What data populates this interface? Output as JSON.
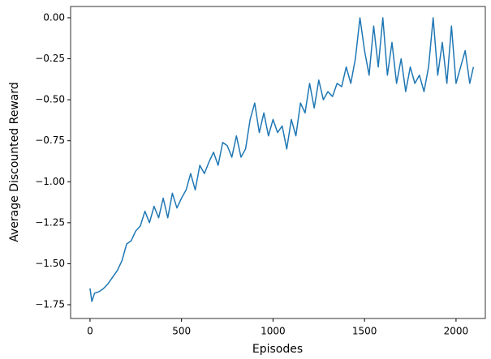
{
  "chart_data": {
    "type": "line",
    "x_label": "Episodes",
    "y_label": "Average Discounted Reward",
    "x": [
      0,
      10,
      25,
      50,
      75,
      100,
      125,
      150,
      175,
      200,
      225,
      250,
      275,
      300,
      325,
      350,
      375,
      400,
      425,
      450,
      475,
      500,
      525,
      550,
      575,
      600,
      625,
      650,
      675,
      700,
      725,
      750,
      775,
      800,
      825,
      850,
      875,
      900,
      925,
      950,
      975,
      1000,
      1025,
      1050,
      1075,
      1100,
      1125,
      1150,
      1175,
      1200,
      1225,
      1250,
      1275,
      1300,
      1325,
      1350,
      1375,
      1400,
      1425,
      1450,
      1475,
      1500,
      1525,
      1550,
      1575,
      1600,
      1625,
      1650,
      1675,
      1700,
      1725,
      1750,
      1775,
      1800,
      1825,
      1850,
      1875,
      1900,
      1925,
      1950,
      1975,
      2000,
      2025,
      2050,
      2075,
      2095
    ],
    "series": [
      {
        "name": "Average Discounted Reward",
        "color": "#1f77b4",
        "values": [
          -1.65,
          -1.73,
          -1.68,
          -1.67,
          -1.65,
          -1.62,
          -1.58,
          -1.54,
          -1.48,
          -1.38,
          -1.36,
          -1.3,
          -1.27,
          -1.18,
          -1.25,
          -1.15,
          -1.22,
          -1.1,
          -1.22,
          -1.07,
          -1.16,
          -1.1,
          -1.05,
          -0.95,
          -1.05,
          -0.9,
          -0.95,
          -0.88,
          -0.82,
          -0.9,
          -0.76,
          -0.78,
          -0.85,
          -0.72,
          -0.85,
          -0.8,
          -0.62,
          -0.52,
          -0.7,
          -0.58,
          -0.72,
          -0.62,
          -0.7,
          -0.66,
          -0.8,
          -0.62,
          -0.72,
          -0.52,
          -0.58,
          -0.4,
          -0.55,
          -0.38,
          -0.5,
          -0.45,
          -0.48,
          -0.4,
          -0.42,
          -0.3,
          -0.4,
          -0.25,
          0.0,
          -0.2,
          -0.35,
          -0.05,
          -0.3,
          0.0,
          -0.35,
          -0.15,
          -0.4,
          -0.25,
          -0.45,
          -0.3,
          -0.4,
          -0.35,
          -0.45,
          -0.3,
          0.0,
          -0.35,
          -0.15,
          -0.4,
          -0.05,
          -0.4,
          -0.3,
          -0.2,
          -0.4,
          -0.3
        ]
      }
    ],
    "xlim": [
      -106,
      2160
    ],
    "ylim": [
      -1.834,
      0.069
    ],
    "xticks": [
      0,
      500,
      1000,
      1500,
      2000
    ],
    "yticks": [
      {
        "value": 0,
        "label": "0.00"
      },
      {
        "value": -0.25,
        "label": "−0.25"
      },
      {
        "value": -0.5,
        "label": "−0.50"
      },
      {
        "value": -0.75,
        "label": "−0.75"
      },
      {
        "value": -1,
        "label": "−1.00"
      },
      {
        "value": -1.25,
        "label": "−1.25"
      },
      {
        "value": -1.5,
        "label": "−1.50"
      },
      {
        "value": -1.75,
        "label": "−1.75"
      }
    ]
  }
}
